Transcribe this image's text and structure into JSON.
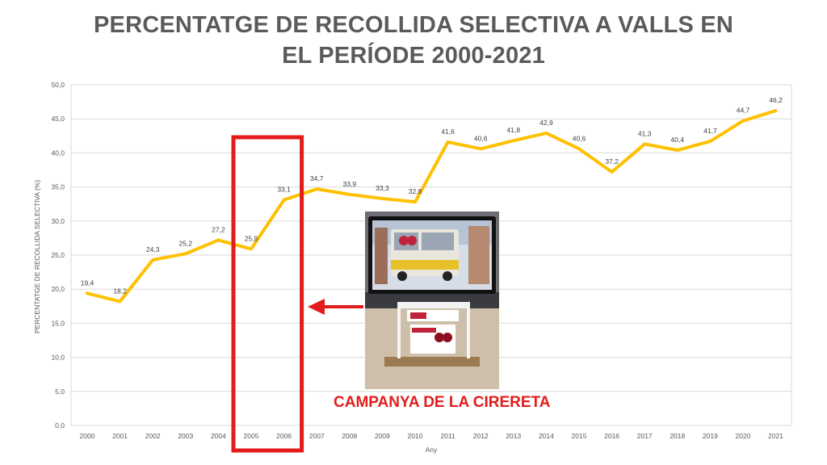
{
  "title": {
    "line1": "PERCENTATGE DE RECOLLIDA SELECTIVA A VALLS EN",
    "line2": "EL PERÍODE 2000-2021"
  },
  "annotation": {
    "label": "CAMPANYA DE LA CIRERETA",
    "highlight_years": [
      "2005",
      "2006"
    ],
    "color": "#e31b1b"
  },
  "chart_data": {
    "type": "line",
    "title": "PERCENTATGE DE RECOLLIDA SELECTIVA A VALLS EN EL PERÍODE 2000-2021",
    "xlabel": "Any",
    "ylabel": "PERCENTATGE  DE RECOLLIDA SELECTIVA  (%)",
    "ylim": [
      0,
      50
    ],
    "y_ticks": [
      "0,0",
      "5,0",
      "10,0",
      "15,0",
      "20,0",
      "25,0",
      "30,0",
      "35,0",
      "40,0",
      "45,0",
      "50,0"
    ],
    "grid": true,
    "line_color": "#ffc000",
    "categories": [
      "2000",
      "2001",
      "2002",
      "2003",
      "2004",
      "2005",
      "2006",
      "2007",
      "2008",
      "2009",
      "2010",
      "2011",
      "2012",
      "2013",
      "2014",
      "2015",
      "2016",
      "2017",
      "2018",
      "2019",
      "2020",
      "2021"
    ],
    "values": [
      19.4,
      18.2,
      24.3,
      25.2,
      27.2,
      25.9,
      33.1,
      34.7,
      33.9,
      33.3,
      32.8,
      41.6,
      40.6,
      41.8,
      42.9,
      40.6,
      37.2,
      41.3,
      40.4,
      41.7,
      44.7,
      46.2
    ],
    "data_labels": [
      "19,4",
      "18,2",
      "24,3",
      "25,2",
      "27,2",
      "25,9",
      "33,1",
      "34,7",
      "33,9",
      "33,3",
      "32,8",
      "41,6",
      "40,6",
      "41,8",
      "42,9",
      "40,6",
      "37,2",
      "41,3",
      "40,4",
      "41,7",
      "44,7",
      "46,2"
    ]
  }
}
